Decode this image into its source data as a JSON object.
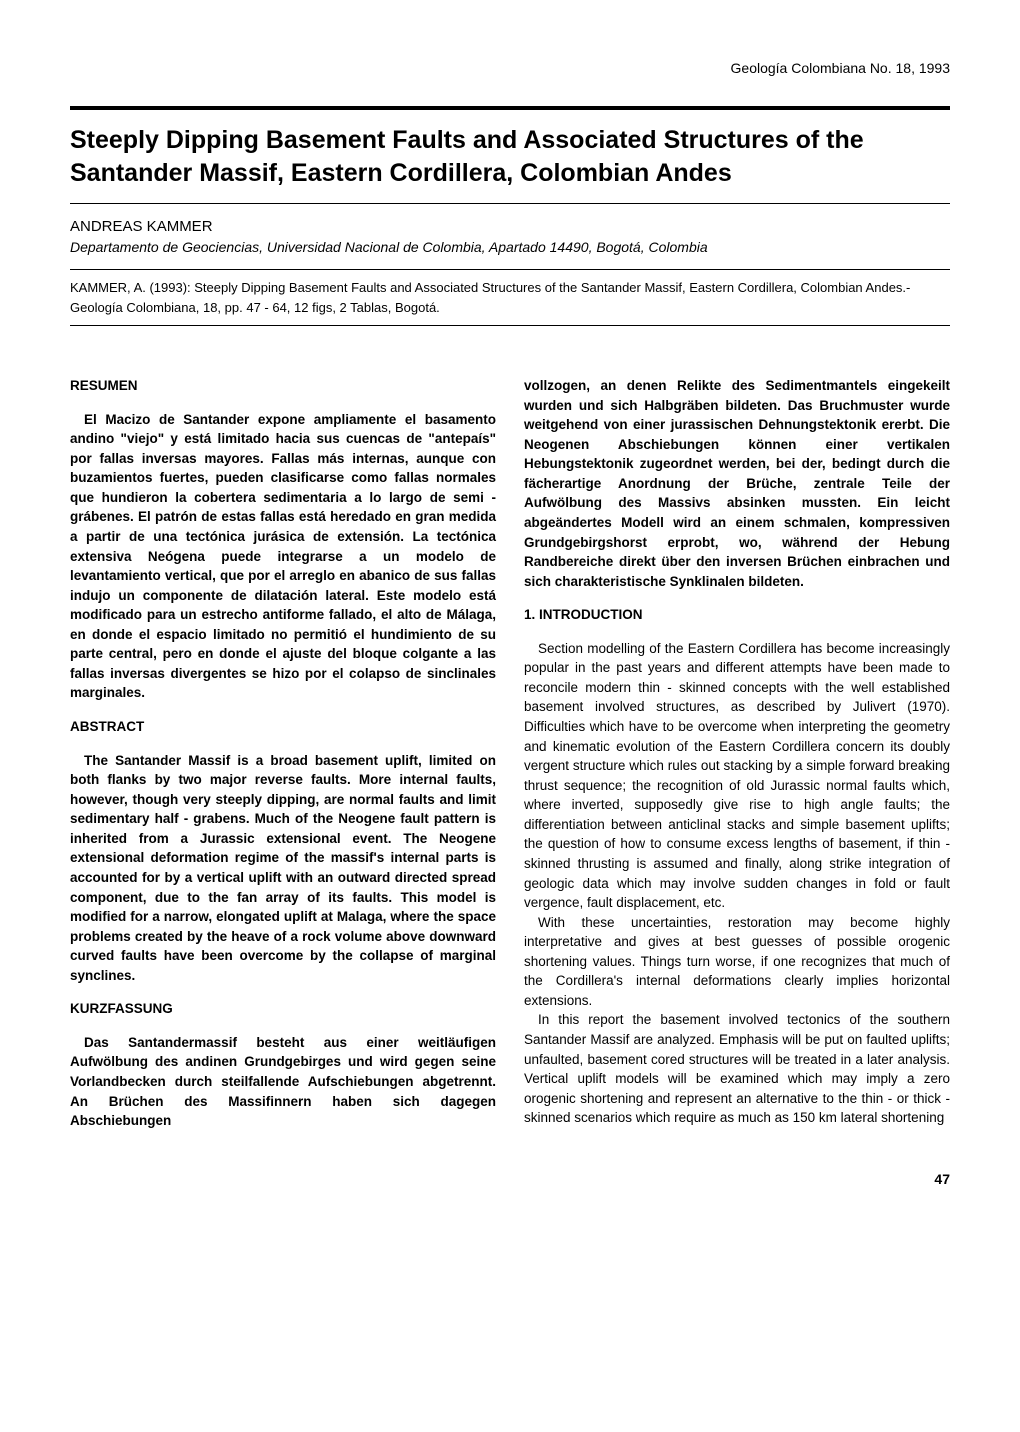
{
  "journal_header": "Geología Colombiana No. 18, 1993",
  "title": "Steeply Dipping Basement Faults and Associated Structures of the Santander Massif, Eastern Cordillera, Colombian Andes",
  "author": "ANDREAS KAMMER",
  "affiliation": "Departamento de Geociencias, Universidad Nacional de Colombia, Apartado 14490, Bogotá, Colombia",
  "citation": "KAMMER, A. (1993): Steeply Dipping Basement Faults and Associated Structures of the Santander Massif, Eastern Cordillera, Colombian Andes.- Geología Colombiana, 18, pp. 47 - 64, 12 figs, 2 Tablas, Bogotá.",
  "sections": {
    "resumen": {
      "heading": "RESUMEN",
      "body": "El Macizo de Santander expone ampliamente el basamento andino \"viejo\" y está limitado hacia sus cuencas de \"antepaís\" por fallas inversas mayores. Fallas más internas, aunque con buzamientos fuertes, pueden clasificarse como fallas normales que hundieron la cobertera sedimentaria a lo largo de semi - grábenes. El patrón de estas fallas está heredado en gran medida a partir de una tectónica jurásica de extensión. La tectónica extensiva Neógena puede integrarse a un modelo de levantamiento vertical, que por el arreglo en abanico de sus fallas indujo un componente de dilatación lateral. Este modelo está modificado para un estrecho antiforme fallado, el alto de Málaga, en donde el espacio limitado no permitió el hundimiento de su parte central, pero en donde el ajuste del bloque colgante a las fallas inversas divergentes se hizo por el colapso de sinclinales marginales."
    },
    "abstract": {
      "heading": "ABSTRACT",
      "body": "The Santander Massif is a broad basement uplift, limited on both flanks by two major reverse faults. More internal faults, however, though very steeply dipping, are normal faults and limit sedimentary half - grabens. Much of the Neogene fault pattern is inherited from a Jurassic extensional event. The Neogene extensional deformation regime of the massif's internal parts is accounted for by a vertical uplift with an outward directed spread component, due to the fan array of its faults. This model is modified for a narrow, elongated uplift at Malaga, where the space problems created by the heave of a rock volume above downward curved faults have been overcome by the collapse of marginal synclines."
    },
    "kurzfassung": {
      "heading": "KURZFASSUNG",
      "body_part1": "Das Santandermassif besteht aus einer weitläufigen Aufwölbung des andinen Grundgebirges und wird gegen seine Vorlandbecken durch steilfallende Aufschiebungen abgetrennt. An Brüchen des Massifinnern haben sich dagegen Abschiebungen",
      "body_part2": "vollzogen, an denen Relikte des Sedimentmantels eingekeilt wurden und sich Halbgräben bildeten. Das Bruchmuster wurde weitgehend von einer jurassischen Dehnungstektonik ererbt. Die Neogenen Abschiebungen können einer vertikalen Hebungstektonik zugeordnet werden, bei der, bedingt durch die fächerartige Anordnung der Brüche, zentrale Teile der Aufwölbung des Massivs absinken mussten. Ein leicht abgeändertes Modell wird an einem schmalen, kompressiven Grundgebirgshorst erprobt, wo, während der Hebung Randbereiche direkt über den inversen Brüchen einbrachen und sich charakteristische Synklinalen bildeten."
    },
    "introduction": {
      "heading": "1. INTRODUCTION",
      "para1": "Section modelling of the Eastern Cordillera has become increasingly popular in the past years and different attempts have been made to reconcile modern thin - skinned concepts with the well established basement involved structures, as described by Julivert (1970). Difficulties which have to be overcome when interpreting the geometry and kinematic evolution of the Eastern Cordillera concern its doubly vergent structure which rules out stacking by a simple forward breaking thrust sequence; the recognition of old Jurassic normal faults which, where inverted, supposedly give rise to high angle faults; the differentiation between anticlinal stacks and simple basement uplifts; the question of how to consume excess lengths of basement, if thin - skinned thrusting is assumed and finally, along strike integration of geologic data which may involve sudden changes in fold or fault vergence, fault displacement, etc.",
      "para2": "With these uncertainties, restoration may become highly interpretative and gives at best guesses of possible orogenic shortening values. Things turn worse, if one recognizes that much of the Cordillera's internal deformations clearly implies horizontal extensions.",
      "para3": "In this report the basement involved tectonics of the southern Santander Massif are analyzed. Emphasis will be put on faulted uplifts; unfaulted, basement cored structures will be treated in a later analysis. Vertical uplift models will be examined which may imply a zero orogenic shortening and represent an alternative to the thin - or thick - skinned scenarios which require as much as 150 km lateral shortening"
    }
  },
  "page_number": "47",
  "colors": {
    "text": "#000000",
    "background": "#ffffff"
  },
  "fonts": {
    "body_size": 13.5,
    "title_size": 25,
    "header_size": 14
  }
}
